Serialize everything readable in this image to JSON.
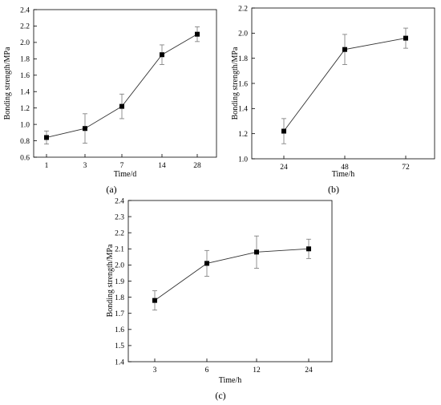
{
  "chart_data": [
    {
      "type": "line",
      "panel_label": "(a)",
      "xlabel": "Time/d",
      "ylabel": "Bonding strength/MPa",
      "categories": [
        "1",
        "3",
        "7",
        "14",
        "28"
      ],
      "series": [
        {
          "values": [
            0.84,
            0.95,
            1.22,
            1.85,
            2.1
          ],
          "errors": [
            0.08,
            0.18,
            0.15,
            0.12,
            0.09
          ]
        }
      ],
      "ylim": [
        0.6,
        2.4
      ],
      "yticks": [
        "0.6",
        "0.8",
        "1.0",
        "1.2",
        "1.4",
        "1.6",
        "1.8",
        "2.0",
        "2.2",
        "2.4"
      ],
      "grid": false,
      "marker": "square"
    },
    {
      "type": "line",
      "panel_label": "(b)",
      "xlabel": "Time/h",
      "ylabel": "Bonding strength/MPa",
      "categories": [
        "24",
        "48",
        "72"
      ],
      "series": [
        {
          "values": [
            1.22,
            1.87,
            1.96
          ],
          "errors": [
            0.1,
            0.12,
            0.08
          ]
        }
      ],
      "ylim": [
        1.0,
        2.2
      ],
      "yticks": [
        "1.0",
        "1.2",
        "1.4",
        "1.6",
        "1.8",
        "2.0",
        "2.2"
      ],
      "grid": false,
      "marker": "square"
    },
    {
      "type": "line",
      "panel_label": "(c)",
      "xlabel": "Time/h",
      "ylabel": "Bonding strength/MPa",
      "categories": [
        "3",
        "6",
        "12",
        "24"
      ],
      "series": [
        {
          "values": [
            1.78,
            2.01,
            2.08,
            2.1
          ],
          "errors": [
            0.06,
            0.08,
            0.1,
            0.06
          ]
        }
      ],
      "ylim": [
        1.4,
        2.4
      ],
      "yticks": [
        "1.4",
        "1.5",
        "1.6",
        "1.7",
        "1.8",
        "1.9",
        "2.0",
        "2.1",
        "2.2",
        "2.3",
        "2.4"
      ],
      "grid": false,
      "marker": "square"
    }
  ]
}
